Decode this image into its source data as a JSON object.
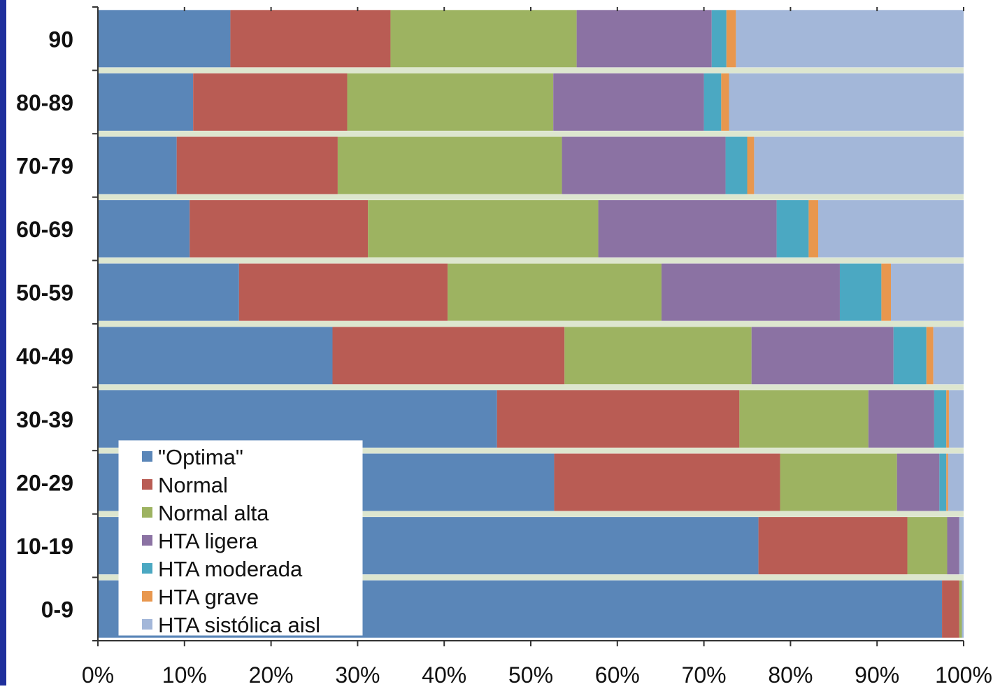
{
  "chart_data": {
    "type": "bar",
    "orientation": "horizontal",
    "stacked": "100%",
    "categories": [
      "90",
      "80-89",
      "70-79",
      "60-69",
      "50-59",
      "40-49",
      "30-39",
      "20-29",
      "10-19",
      "0-9"
    ],
    "x_ticks": [
      "0%",
      "10%",
      "20%",
      "30%",
      "40%",
      "50%",
      "60%",
      "70%",
      "80%",
      "90%",
      "100%"
    ],
    "xlim": [
      0,
      100
    ],
    "grid": false,
    "legend_position": "bottom-left inside",
    "series": [
      {
        "name": "\"Optima\"",
        "color": "#5a86b8",
        "values": [
          15.3,
          11.0,
          9.1,
          10.6,
          16.3,
          27.1,
          46.1,
          52.7,
          76.3,
          97.5
        ]
      },
      {
        "name": "Normal",
        "color": "#b95c54",
        "values": [
          18.5,
          17.8,
          18.6,
          20.6,
          24.1,
          26.8,
          28.0,
          26.1,
          17.2,
          2.0
        ]
      },
      {
        "name": "Normal alta",
        "color": "#9db361",
        "values": [
          21.5,
          23.8,
          25.9,
          26.6,
          24.7,
          21.6,
          14.9,
          13.5,
          4.6,
          0.3
        ]
      },
      {
        "name": "HTA ligera",
        "color": "#8b72a3",
        "values": [
          15.6,
          17.4,
          18.9,
          20.6,
          20.6,
          16.4,
          7.6,
          4.9,
          1.4,
          0.0
        ]
      },
      {
        "name": "HTA moderada",
        "color": "#4ba8c2",
        "values": [
          1.7,
          2.0,
          2.5,
          3.7,
          4.8,
          3.8,
          1.4,
          0.8,
          0.0,
          0.0
        ]
      },
      {
        "name": "HTA grave",
        "color": "#e8974e",
        "values": [
          1.1,
          0.9,
          0.8,
          1.1,
          1.1,
          0.8,
          0.3,
          0.2,
          0.0,
          0.0
        ]
      },
      {
        "name": "HTA sistólica aisl",
        "color": "#a3b7d9",
        "values": [
          26.3,
          27.1,
          24.2,
          16.8,
          8.4,
          3.5,
          1.7,
          1.8,
          0.5,
          0.2
        ]
      }
    ]
  }
}
